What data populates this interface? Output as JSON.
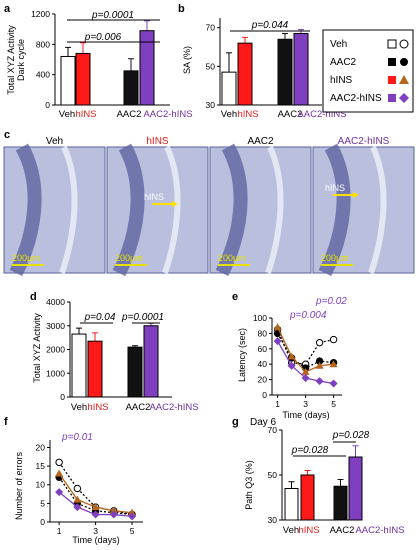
{
  "colors": {
    "veh": "#ffffff",
    "hINS": "#ff1a1a",
    "AAC2": "#111111",
    "AAC2_hINS": "#7f3fbf",
    "hINS_marker": "#b5651d",
    "label_hINS": "#e11b1b",
    "label_AAC2_hINS": "#7030a0",
    "pval_purple": "#7f3fbf",
    "histo_bg": "#b9bfdc",
    "scalebar": "#e8e000",
    "arrow": "#ffe000"
  },
  "legend": {
    "items": [
      {
        "label": "Veh",
        "markers": [
          "open-square",
          "open-circle"
        ]
      },
      {
        "label": "AAC2",
        "markers": [
          "filled-square",
          "filled-circle"
        ]
      },
      {
        "label": "hINS",
        "markers": [
          "red-square",
          "brown-triangle"
        ]
      },
      {
        "label": "AAC2-hINS",
        "markers": [
          "purple-square",
          "purple-diamond"
        ]
      }
    ]
  },
  "panels": {
    "a": {
      "letter": "a",
      "ylabel_line1": "Total XYZ Activity",
      "ylabel_line2": "Dark cycle",
      "ticks": [
        "0",
        "400",
        "800",
        "1200"
      ],
      "p1": "p=0.0001",
      "p2": "p=0.006",
      "cats": [
        "Veh",
        "hINS",
        "AAC2",
        "AAC2-hINS"
      ]
    },
    "b": {
      "letter": "b",
      "ylabel": "SA (%)",
      "ticks": [
        "30",
        "50",
        "70"
      ],
      "p1": "p=0.044",
      "cats": [
        "Veh",
        "hINS",
        "AAC2",
        "AAC2-hINS"
      ]
    },
    "c": {
      "letter": "c",
      "titles": [
        "Veh",
        "hINS",
        "AAC2",
        "AAC2-hINS"
      ],
      "scale": "200μm",
      "arrow_label": "hINS"
    },
    "d": {
      "letter": "d",
      "ylabel": "Total XYZ  Activity",
      "ticks": [
        "0",
        "1000",
        "2000",
        "3000",
        "4000"
      ],
      "p1": "p=0.04",
      "p2": "p=0.0001",
      "cats": [
        "Veh",
        "hINS",
        "AAC2",
        "AAC2-hINS"
      ]
    },
    "e": {
      "letter": "e",
      "ylabel": "Latency (sec)",
      "xlabel": "Time (days)",
      "yticks": [
        "0",
        "20",
        "40",
        "60",
        "80",
        "100"
      ],
      "xticks": [
        "1",
        "3",
        "5"
      ],
      "p1": "p=0.02",
      "p2": "p=0.004"
    },
    "f": {
      "letter": "f",
      "ylabel": "Number of errors",
      "xlabel": "Time (days)",
      "yticks": [
        "0",
        "5",
        "10",
        "15",
        "20"
      ],
      "xticks": [
        "1",
        "3",
        "5"
      ],
      "p1": "p=0.01"
    },
    "g": {
      "letter": "g",
      "title": "Day 6",
      "ylabel": "Path Q3 (%)",
      "ticks": [
        "30",
        "50",
        "70"
      ],
      "p1": "p=0.028",
      "p2": "p=0.028",
      "cats": [
        "Veh",
        "hINS",
        "AAC2",
        "AAC2-hINS"
      ]
    }
  },
  "chart_data": [
    {
      "panel": "a",
      "type": "bar",
      "categories": [
        "Veh",
        "hINS",
        "AAC2",
        "AAC2-hINS"
      ],
      "values": [
        640,
        680,
        450,
        980
      ],
      "errors": [
        120,
        140,
        160,
        130
      ],
      "ylim": [
        0,
        1200
      ]
    },
    {
      "panel": "b",
      "type": "bar",
      "categories": [
        "Veh",
        "hINS",
        "AAC2",
        "AAC2-hINS"
      ],
      "values": [
        47,
        62,
        64,
        67
      ],
      "errors": [
        10,
        3,
        3,
        2
      ],
      "ylim": [
        30,
        75
      ]
    },
    {
      "panel": "d",
      "type": "bar",
      "categories": [
        "Veh",
        "hINS",
        "AAC2",
        "AAC2-hINS"
      ],
      "values": [
        2650,
        2350,
        2100,
        3000
      ],
      "errors": [
        250,
        350,
        60,
        100
      ],
      "ylim": [
        0,
        4000
      ]
    },
    {
      "panel": "e",
      "type": "line",
      "x": [
        1,
        2,
        3,
        4,
        5
      ],
      "ylim": [
        0,
        100
      ],
      "xlim": [
        0.6,
        5.6
      ],
      "series": [
        {
          "name": "Veh",
          "values": [
            85,
            42,
            40,
            68,
            72
          ]
        },
        {
          "name": "AAC2",
          "values": [
            80,
            48,
            35,
            44,
            42
          ]
        },
        {
          "name": "hINS",
          "values": [
            88,
            50,
            30,
            38,
            40
          ]
        },
        {
          "name": "AAC2-hINS",
          "values": [
            70,
            38,
            22,
            18,
            15
          ]
        }
      ]
    },
    {
      "panel": "f",
      "type": "line",
      "x": [
        1,
        2,
        3,
        4,
        5
      ],
      "ylim": [
        0,
        22
      ],
      "xlim": [
        0.5,
        5.6
      ],
      "series": [
        {
          "name": "Veh",
          "values": [
            16,
            9,
            4,
            3,
            2
          ]
        },
        {
          "name": "AAC2",
          "values": [
            12,
            5,
            3,
            2.5,
            2
          ]
        },
        {
          "name": "hINS",
          "values": [
            13,
            6,
            4,
            3,
            2.5
          ]
        },
        {
          "name": "AAC2-hINS",
          "values": [
            8,
            4,
            2,
            2,
            1.5
          ]
        }
      ]
    },
    {
      "panel": "g",
      "type": "bar",
      "categories": [
        "Veh",
        "hINS",
        "AAC2",
        "AAC2-hINS"
      ],
      "values": [
        44,
        50,
        45,
        58
      ],
      "errors": [
        3,
        2,
        3,
        5
      ],
      "ylim": [
        30,
        70
      ]
    }
  ]
}
